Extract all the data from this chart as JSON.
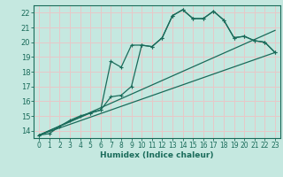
{
  "title": "",
  "xlabel": "Humidex (Indice chaleur)",
  "ylabel": "",
  "bg_color": "#c5e8e0",
  "line_color": "#1a6b5a",
  "grid_color": "#e8c8c8",
  "xlim": [
    -0.5,
    23.5
  ],
  "ylim": [
    13.5,
    22.5
  ],
  "xticks": [
    0,
    1,
    2,
    3,
    4,
    5,
    6,
    7,
    8,
    9,
    10,
    11,
    12,
    13,
    14,
    15,
    16,
    17,
    18,
    19,
    20,
    21,
    22,
    23
  ],
  "yticks": [
    14,
    15,
    16,
    17,
    18,
    19,
    20,
    21,
    22
  ],
  "line1_x": [
    0,
    1,
    2,
    3,
    4,
    5,
    6,
    7,
    8,
    9,
    10,
    11,
    12,
    13,
    14,
    15,
    16,
    17,
    18,
    19,
    20,
    21,
    22,
    23
  ],
  "line1_y": [
    13.7,
    13.8,
    14.3,
    14.7,
    15.0,
    15.2,
    15.4,
    16.3,
    16.4,
    17.0,
    19.8,
    19.7,
    20.3,
    21.8,
    22.2,
    21.6,
    21.6,
    22.1,
    21.5,
    20.3,
    20.4,
    20.1,
    20.0,
    19.3
  ],
  "line2_x": [
    0,
    5,
    6,
    7,
    8,
    9,
    10,
    11,
    12,
    13,
    14,
    15,
    16,
    17,
    18,
    19,
    20,
    21,
    22,
    23
  ],
  "line2_y": [
    13.7,
    15.2,
    15.4,
    18.7,
    18.3,
    19.8,
    19.8,
    19.7,
    20.3,
    21.8,
    22.2,
    21.6,
    21.6,
    22.1,
    21.5,
    20.3,
    20.4,
    20.1,
    20.0,
    19.3
  ],
  "line3_x": [
    0,
    23
  ],
  "line3_y": [
    13.7,
    20.8
  ],
  "line4_x": [
    0,
    23
  ],
  "line4_y": [
    13.7,
    19.3
  ]
}
